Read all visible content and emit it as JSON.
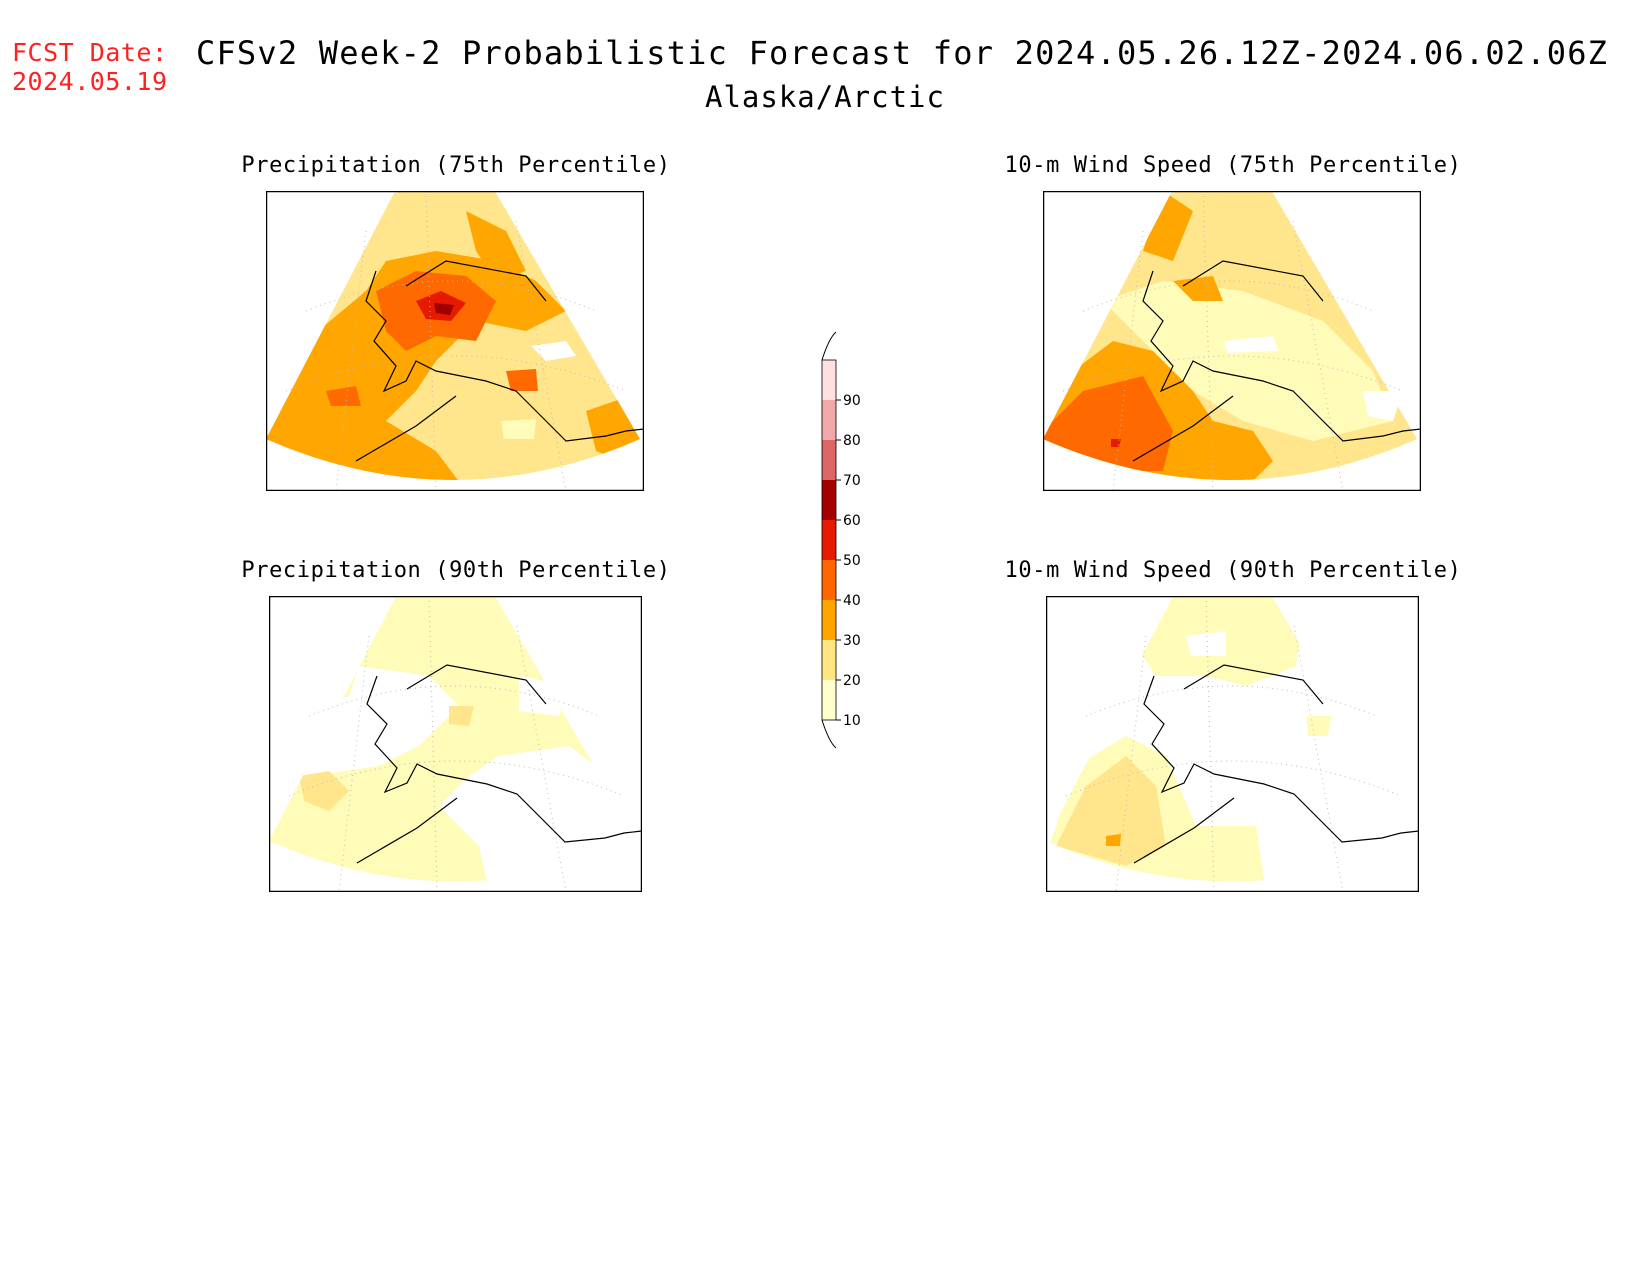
{
  "header": {
    "fcst_label": "FCST Date:",
    "fcst_date": "2024.05.19",
    "title": "CFSv2 Week-2 Probabilistic Forecast for 2024.05.26.12Z-2024.06.02.06Z",
    "region": "Alaska/Arctic"
  },
  "panels": [
    {
      "id": "precip75",
      "title": "Precipitation (75th Percentile)",
      "dominant_category": "20-40"
    },
    {
      "id": "wind75",
      "title": "10-m Wind Speed (75th Percentile)",
      "dominant_category": "20-40"
    },
    {
      "id": "precip90",
      "title": "Precipitation (90th Percentile)",
      "dominant_category": "10-20"
    },
    {
      "id": "wind90",
      "title": "10-m Wind Speed (90th Percentile)",
      "dominant_category": "below 10-20"
    }
  ],
  "legend": {
    "ticks": [
      "10",
      "20",
      "30",
      "40",
      "50",
      "60",
      "70",
      "80",
      "90"
    ],
    "colors": [
      "#ffffcc",
      "#ffe680",
      "#ffa500",
      "#ff6600",
      "#e61a00",
      "#a50000",
      "#dd6666",
      "#f0a8a8",
      "#ffe0e0"
    ]
  },
  "colors": {
    "fcst": "#ff2020",
    "white": "#ffffff",
    "c10": "#fffbb8",
    "c20": "#ffe68c",
    "c30": "#ffa600",
    "c40": "#ff6a00",
    "c50": "#e61a00",
    "c60": "#a00000"
  }
}
